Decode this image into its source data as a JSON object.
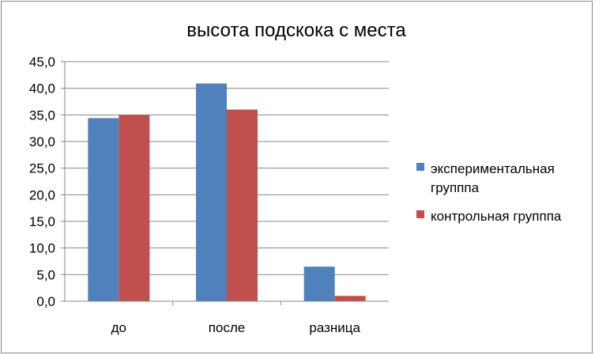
{
  "chart_data": {
    "type": "bar",
    "title": "высота подскока с места",
    "categories": [
      "до",
      "после",
      "разница"
    ],
    "series": [
      {
        "name": "экспериментальная групппа",
        "values": [
          34.4,
          40.9,
          6.5
        ],
        "color": "#4F81BD"
      },
      {
        "name": "контрольная групппа",
        "values": [
          35.0,
          36.0,
          1.0
        ],
        "color": "#C0504D"
      }
    ],
    "ylim": [
      0,
      45
    ],
    "yticks": [
      "0,0",
      "5,0",
      "10,0",
      "15,0",
      "20,0",
      "25,0",
      "30,0",
      "35,0",
      "40,0",
      "45,0"
    ],
    "grid": true,
    "legend_position": "right",
    "xlabel": "",
    "ylabel": ""
  }
}
